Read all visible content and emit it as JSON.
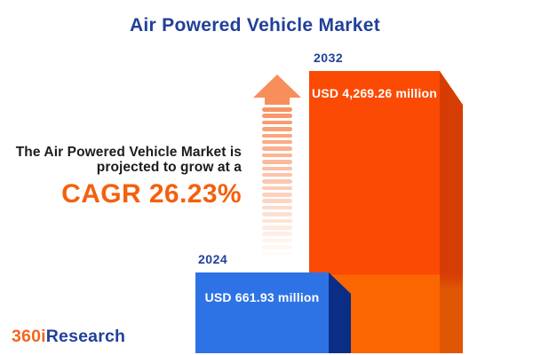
{
  "title": "Air Powered Vehicle Market",
  "description": {
    "line1": "The Air Powered Vehicle Market is",
    "line2": "projected to grow at a",
    "cagr": "CAGR 26.23%"
  },
  "bars": {
    "start": {
      "year": "2024",
      "value_label": "USD 661.93 million"
    },
    "end": {
      "year": "2032",
      "value_label": "USD 4,269.26 million"
    }
  },
  "logo": {
    "part1": "360i",
    "part2": "Research"
  },
  "colors": {
    "title_navy": "#21409A",
    "body_text": "#1C1C1C",
    "accent_orange": "#F4600E",
    "bar_2032_face": "#FB4A04",
    "bar_2032_face_lower": "#FB6602",
    "bar_2032_side": "#D63D04",
    "bar_2032_side_lower": "#DF5604",
    "bar_2024_face": "#2E73E6",
    "bar_2024_side": "#0A2E85",
    "arrow": "#F78E5C",
    "logo_orange": "#F0681F",
    "bar_value_text": "#FFFFFF"
  },
  "chart_data": {
    "type": "bar",
    "title": "Air Powered Vehicle Market",
    "categories": [
      "2024",
      "2032"
    ],
    "values": [
      661.93,
      4269.26
    ],
    "unit": "USD million",
    "data_labels": [
      "USD 661.93 million",
      "USD 4,269.26 million"
    ],
    "series_colors": [
      "#2E73E6",
      "#FB4A04"
    ],
    "annotations": [
      "The Air Powered Vehicle Market is projected to grow at a CAGR 26.23%"
    ],
    "legend": false,
    "axes_visible": false,
    "style": "3d-infographic-columns"
  }
}
